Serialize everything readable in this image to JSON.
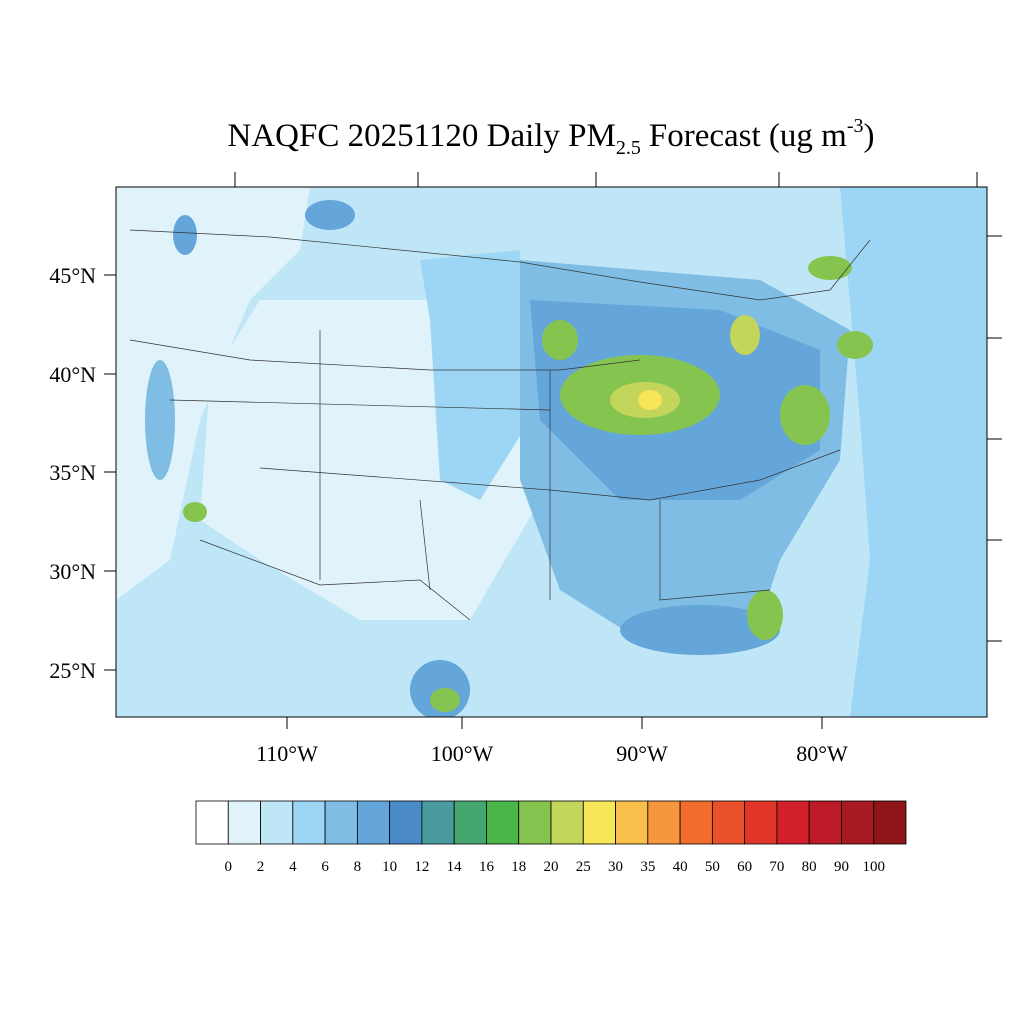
{
  "title": {
    "main": "NAQFC 20251120 Daily PM",
    "sub": "2.5",
    "rest": "Forecast (ug m",
    "sup": "-3",
    "end": ")"
  },
  "map": {
    "lat_labels": [
      "45°N",
      "40°N",
      "35°N",
      "30°N",
      "25°N"
    ],
    "lon_labels": [
      "110°W",
      "100°W",
      "90°W",
      "80°W"
    ]
  },
  "colorbar": {
    "colors": [
      "#ffffff",
      "#e0f3fb",
      "#bfe6f7",
      "#9dd6f4",
      "#80bde4",
      "#65a6da",
      "#4a8ac7",
      "#4a9b9e",
      "#45a66f",
      "#4ab548",
      "#85c44f",
      "#c3d55a",
      "#f6e658",
      "#f8c04b",
      "#f6973e",
      "#f26d2d",
      "#e9512c",
      "#e03528",
      "#d21f2c",
      "#bd1a28",
      "#a81a22",
      "#8f1519"
    ],
    "labels": [
      0,
      2,
      4,
      6,
      8,
      10,
      12,
      14,
      16,
      18,
      20,
      25,
      30,
      35,
      40,
      50,
      60,
      70,
      80,
      90,
      100
    ]
  }
}
